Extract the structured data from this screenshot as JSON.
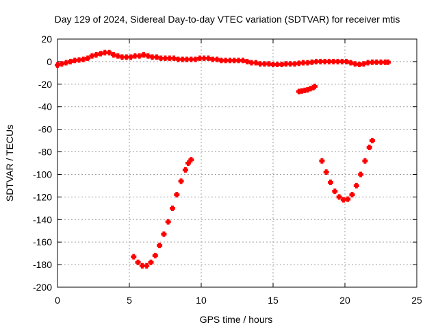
{
  "chart_data": {
    "type": "scatter",
    "title": "Day 129 of 2024, Sidereal Day-to-day VTEC variation (SDTVAR) for receiver mtis",
    "xlabel": "GPS time / hours",
    "ylabel": "SDTVAR / TECUs",
    "xlim": [
      0,
      25
    ],
    "ylim": [
      -200,
      20
    ],
    "xticks": [
      0,
      5,
      10,
      15,
      20,
      25
    ],
    "yticks": [
      -200,
      -180,
      -160,
      -140,
      -120,
      -100,
      -80,
      -60,
      -40,
      -20,
      0,
      20
    ],
    "grid": true,
    "legend": "none",
    "color": "#ff0000",
    "series": [
      {
        "points": [
          [
            0.0,
            -3
          ],
          [
            0.3,
            -2
          ],
          [
            0.6,
            -1
          ],
          [
            0.9,
            0
          ],
          [
            1.2,
            1
          ],
          [
            1.5,
            1.5
          ],
          [
            1.8,
            2
          ],
          [
            2.1,
            3
          ],
          [
            2.4,
            5
          ],
          [
            2.7,
            6
          ],
          [
            3.0,
            7
          ],
          [
            3.3,
            8
          ],
          [
            3.6,
            8
          ],
          [
            3.9,
            6
          ],
          [
            4.2,
            5
          ],
          [
            4.5,
            4
          ],
          [
            4.8,
            4
          ],
          [
            5.1,
            4
          ],
          [
            5.4,
            5
          ],
          [
            5.7,
            5
          ],
          [
            6.0,
            6
          ],
          [
            6.3,
            5
          ],
          [
            6.6,
            4
          ],
          [
            6.9,
            4
          ],
          [
            7.2,
            3
          ],
          [
            7.5,
            3
          ],
          [
            7.8,
            3
          ],
          [
            8.1,
            3
          ],
          [
            8.4,
            2
          ],
          [
            8.7,
            2
          ],
          [
            9.0,
            2
          ],
          [
            9.3,
            2
          ],
          [
            9.6,
            2
          ],
          [
            9.9,
            3
          ],
          [
            10.2,
            3
          ],
          [
            10.5,
            3
          ],
          [
            10.8,
            2
          ],
          [
            11.1,
            2
          ],
          [
            11.4,
            1
          ],
          [
            11.7,
            1
          ],
          [
            12.0,
            1
          ],
          [
            12.3,
            1
          ],
          [
            12.6,
            1
          ],
          [
            12.9,
            1
          ],
          [
            13.2,
            0
          ],
          [
            13.5,
            -1
          ],
          [
            13.8,
            -1
          ],
          [
            14.1,
            -2
          ],
          [
            14.4,
            -2
          ],
          [
            14.7,
            -2
          ],
          [
            15.0,
            -2.5
          ],
          [
            15.3,
            -2.5
          ],
          [
            15.6,
            -2.5
          ],
          [
            15.9,
            -2
          ],
          [
            16.2,
            -2
          ],
          [
            16.5,
            -2
          ],
          [
            16.8,
            -1.5
          ],
          [
            17.1,
            -1
          ],
          [
            17.4,
            -1
          ],
          [
            17.7,
            -0.5
          ],
          [
            18.0,
            0
          ],
          [
            18.3,
            0
          ],
          [
            18.6,
            0
          ],
          [
            18.9,
            0
          ],
          [
            19.2,
            0
          ],
          [
            19.5,
            0
          ],
          [
            19.8,
            0
          ],
          [
            20.1,
            0
          ],
          [
            20.4,
            -1
          ],
          [
            20.7,
            -2
          ],
          [
            21.0,
            -2.5
          ],
          [
            21.3,
            -2
          ],
          [
            21.6,
            -1
          ],
          [
            21.9,
            -0.5
          ],
          [
            22.2,
            -0.5
          ],
          [
            22.5,
            -0.5
          ],
          [
            22.8,
            -0.5
          ],
          [
            23.0,
            -0.5
          ]
        ]
      },
      {
        "points": [
          [
            16.8,
            -26.5
          ],
          [
            17.0,
            -26
          ],
          [
            17.2,
            -25.5
          ],
          [
            17.4,
            -25
          ],
          [
            17.6,
            -24
          ],
          [
            17.8,
            -23
          ],
          [
            17.9,
            -22
          ]
        ]
      },
      {
        "points": [
          [
            5.3,
            -173
          ],
          [
            5.6,
            -178
          ],
          [
            5.9,
            -181
          ],
          [
            6.2,
            -181
          ],
          [
            6.5,
            -178
          ],
          [
            6.8,
            -172
          ],
          [
            7.1,
            -163
          ],
          [
            7.4,
            -153
          ],
          [
            7.7,
            -142
          ],
          [
            8.0,
            -130
          ],
          [
            8.3,
            -118
          ],
          [
            8.6,
            -106
          ],
          [
            8.9,
            -96
          ],
          [
            9.1,
            -90
          ],
          [
            9.3,
            -87
          ]
        ]
      },
      {
        "points": [
          [
            18.4,
            -88
          ],
          [
            18.7,
            -98
          ],
          [
            19.0,
            -107
          ],
          [
            19.3,
            -115
          ],
          [
            19.6,
            -120
          ],
          [
            19.9,
            -122.5
          ],
          [
            20.2,
            -122
          ],
          [
            20.5,
            -118
          ],
          [
            20.8,
            -110
          ],
          [
            21.1,
            -100
          ],
          [
            21.4,
            -88
          ],
          [
            21.7,
            -76
          ],
          [
            21.9,
            -70
          ]
        ]
      }
    ]
  }
}
